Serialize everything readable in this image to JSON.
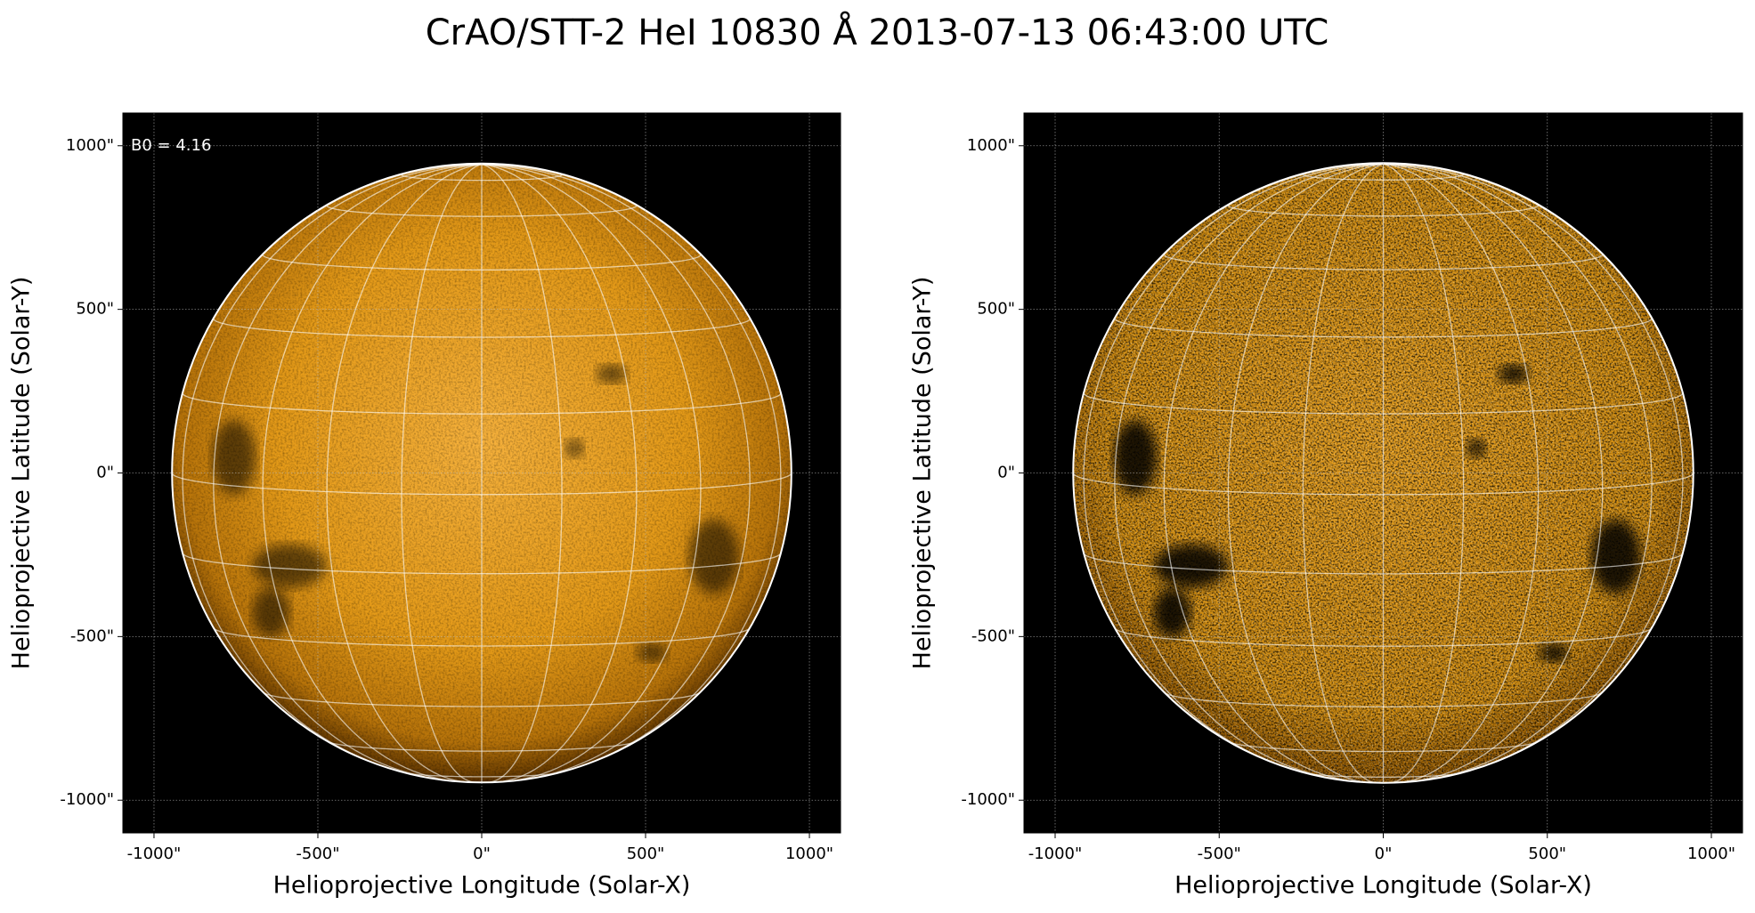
{
  "title": "CrAO/STT-2 HeI 10830 Å 2013-07-13 06:43:00 UTC",
  "chart_data": [
    {
      "type": "image",
      "xlabel": "Helioprojective Longitude (Solar-X)",
      "ylabel": "Helioprojective Latitude (Solar-Y)",
      "annotation": "B0 = 4.16",
      "disk_radius": 945,
      "xlim": [
        -1095,
        1095
      ],
      "ylim": [
        -1100,
        1100
      ],
      "xticks": [
        {
          "value": -1000,
          "label": "-1000\""
        },
        {
          "value": -500,
          "label": "-500\""
        },
        {
          "value": 0,
          "label": "0\""
        },
        {
          "value": 500,
          "label": "500\""
        },
        {
          "value": 1000,
          "label": "1000\""
        }
      ],
      "yticks": [
        {
          "value": -1000,
          "label": "-1000\""
        },
        {
          "value": -500,
          "label": "-500\""
        },
        {
          "value": 0,
          "label": "0\""
        },
        {
          "value": 500,
          "label": "500\""
        },
        {
          "value": 1000,
          "label": "1000\""
        }
      ]
    },
    {
      "type": "image",
      "xlabel": "Helioprojective Longitude (Solar-X)",
      "ylabel": "Helioprojective Latitude (Solar-Y)",
      "disk_radius": 945,
      "xlim": [
        -1095,
        1095
      ],
      "ylim": [
        -1100,
        1100
      ],
      "xticks": [
        {
          "value": -1000,
          "label": "-1000\""
        },
        {
          "value": -500,
          "label": "-500\""
        },
        {
          "value": 0,
          "label": "0\""
        },
        {
          "value": 500,
          "label": "500\""
        },
        {
          "value": 1000,
          "label": "1000\""
        }
      ],
      "yticks": [
        {
          "value": -1000,
          "label": "-1000\""
        },
        {
          "value": -500,
          "label": "-500\""
        },
        {
          "value": 0,
          "label": "0\""
        },
        {
          "value": 500,
          "label": "500\""
        },
        {
          "value": 1000,
          "label": "1000\""
        }
      ]
    }
  ]
}
